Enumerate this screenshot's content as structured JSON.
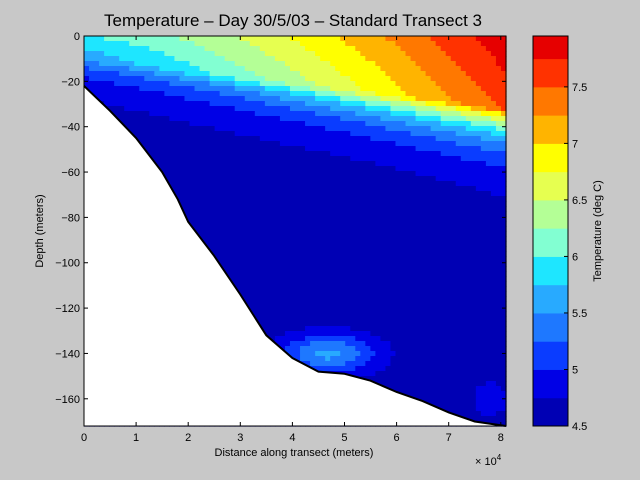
{
  "chart_data": {
    "type": "heatmap",
    "title": "Temperature – Day 30/5/03 – Standard Transect 3",
    "xlabel": "Distance along transect (meters)",
    "ylabel": "Depth (meters)",
    "x_multiplier": "× 10",
    "x_multiplier_exponent": "4",
    "xlim": [
      0,
      81000
    ],
    "ylim": [
      -172,
      0
    ],
    "x_ticks": [
      0,
      10000,
      20000,
      30000,
      40000,
      50000,
      60000,
      70000,
      80000
    ],
    "x_tick_labels": [
      "0",
      "1",
      "2",
      "3",
      "4",
      "5",
      "6",
      "7",
      "8"
    ],
    "y_ticks": [
      0,
      -20,
      -40,
      -60,
      -80,
      -100,
      -120,
      -140,
      -160
    ],
    "y_tick_labels": [
      "0",
      "−20",
      "−40",
      "−60",
      "−80",
      "−100",
      "−120",
      "−140",
      "−160"
    ],
    "colorbar": {
      "label": "Temperature (deg C)",
      "range": [
        4.5,
        7.95
      ],
      "ticks": [
        4.5,
        5,
        5.5,
        6,
        6.5,
        7,
        7.5
      ],
      "tick_labels": [
        "4.5",
        "5",
        "5.5",
        "6",
        "6.5",
        "7",
        "7.5"
      ],
      "levels": [
        4.5,
        4.75,
        5.0,
        5.25,
        5.5,
        5.75,
        6.0,
        6.25,
        6.5,
        6.75,
        7.0,
        7.25,
        7.5,
        7.75,
        7.95
      ],
      "colors": [
        "#0000b4",
        "#0000e6",
        "#0a3cff",
        "#1e78ff",
        "#28aaff",
        "#1ee6ff",
        "#82ffd2",
        "#b4ff96",
        "#e6ff50",
        "#ffff00",
        "#ffb400",
        "#ff7800",
        "#ff3200",
        "#e60000",
        "#b40000"
      ]
    },
    "bathymetry": {
      "x": [
        0,
        5000,
        10000,
        15000,
        18000,
        20000,
        25000,
        30000,
        35000,
        40000,
        45000,
        50000,
        55000,
        60000,
        65000,
        70000,
        75000,
        81000
      ],
      "depth": [
        -22,
        -33,
        -45,
        -60,
        -72,
        -82,
        -97,
        -114,
        -132,
        -142,
        -148,
        -149,
        -152,
        -157,
        -161,
        -166,
        -170,
        -172
      ]
    },
    "grid": false
  }
}
